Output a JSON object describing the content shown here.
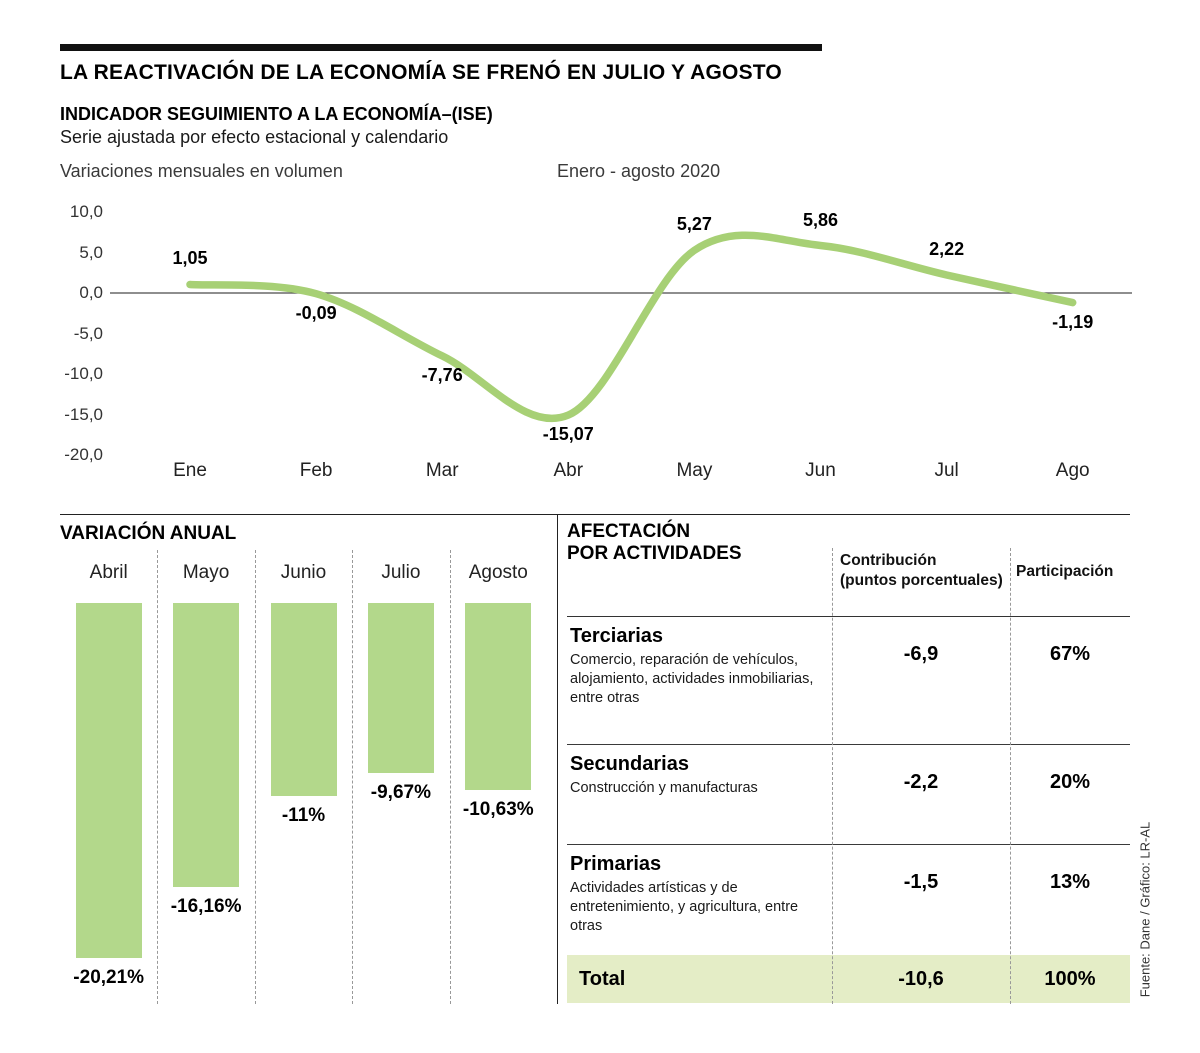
{
  "header": {
    "title": "LA REACTIVACIÓN DE LA ECONOMÍA SE FRENÓ EN JULIO Y AGOSTO",
    "indicator_title": "INDICADOR SEGUIMIENTO A LA ECONOMÍA–(ISE)",
    "indicator_subtitle": "Serie ajustada por efecto estacional y calendario"
  },
  "line_section": {
    "y_axis_caption": "Variaciones mensuales en volumen",
    "period_caption": "Enero - agosto 2020"
  },
  "annual_section": {
    "title": "VARIACIÓN ANUAL"
  },
  "activities_section": {
    "title_line1": "AFECTACIÓN",
    "title_line2": "POR ACTIVIDADES",
    "col_contribution_line1": "Contribución",
    "col_contribution_line2": "(puntos porcentuales)",
    "col_participation": "Participación"
  },
  "source": "Fuente: Dane / Gráfico: LR-AL",
  "colors": {
    "line": "#a7d075",
    "bar": "#b3d88b",
    "total_bg": "#e4edc6"
  },
  "chart_data": [
    {
      "id": "ise_monthly",
      "type": "line",
      "title": "INDICADOR SEGUIMIENTO A LA ECONOMÍA–(ISE)",
      "subtitle": "Variaciones mensuales en volumen · Enero - agosto 2020",
      "categories": [
        "Ene",
        "Feb",
        "Mar",
        "Abr",
        "May",
        "Jun",
        "Jul",
        "Ago"
      ],
      "values": [
        1.05,
        -0.09,
        -7.76,
        -15.07,
        5.27,
        5.86,
        2.22,
        -1.19
      ],
      "value_labels": [
        "1,05",
        "-0,09",
        "-7,76",
        "-15,07",
        "5,27",
        "5,86",
        "2,22",
        "-1,19"
      ],
      "ylim": [
        -20,
        10
      ],
      "ytick_labels": [
        "10,0",
        "5,0",
        "0,0",
        "-5,0",
        "-10,0",
        "-15,0",
        "-20,0"
      ],
      "grid": false,
      "zero_line": true,
      "legend": "none"
    },
    {
      "id": "annual_variation",
      "type": "bar",
      "title": "VARIACIÓN ANUAL",
      "categories": [
        "Abril",
        "Mayo",
        "Junio",
        "Julio",
        "Agosto"
      ],
      "values": [
        -20.21,
        -16.16,
        -11,
        -9.67,
        -10.63
      ],
      "value_labels": [
        "-20,21%",
        "-16,16%",
        "-11%",
        "-9,67%",
        "-10,63%"
      ],
      "orientation": "downward-from-top",
      "legend": "none"
    },
    {
      "id": "activity_impact",
      "type": "table",
      "title": "AFECTACIÓN POR ACTIVIDADES",
      "columns": [
        "Contribución (puntos porcentuales)",
        "Participación"
      ],
      "rows": [
        {
          "name": "Terciarias",
          "description": "Comercio, reparación de vehículos, alojamiento, actividades inmobiliarias, entre otras",
          "contribution": "-6,9",
          "participation": "67%",
          "is_total": false
        },
        {
          "name": "Secundarias",
          "description": "Construcción y manufacturas",
          "contribution": "-2,2",
          "participation": "20%",
          "is_total": false
        },
        {
          "name": "Primarias",
          "description": "Actividades artísticas y de entretenimiento, y agricultura, entre otras",
          "contribution": "-1,5",
          "participation": "13%",
          "is_total": false
        },
        {
          "name": "Total",
          "description": "",
          "contribution": "-10,6",
          "participation": "100%",
          "is_total": true
        }
      ]
    }
  ]
}
